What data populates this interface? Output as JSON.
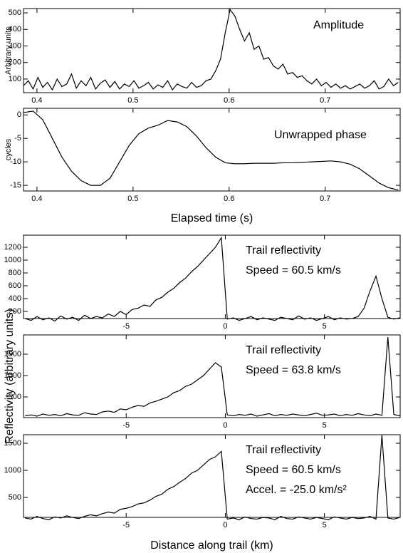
{
  "chart_data": [
    {
      "type": "line",
      "ylabel": "Arbitrary units",
      "annotations": [
        "Amplitude"
      ],
      "color": "#000000",
      "xlim": [
        0.386,
        0.778
      ],
      "xticks": [
        0.4,
        0.5,
        0.6,
        0.7
      ],
      "ylim": [
        18,
        526
      ],
      "yticks": [
        100,
        200,
        300,
        400,
        500
      ],
      "x": [
        0.386,
        0.391,
        0.396,
        0.401,
        0.406,
        0.411,
        0.416,
        0.421,
        0.426,
        0.431,
        0.436,
        0.441,
        0.446,
        0.451,
        0.456,
        0.461,
        0.466,
        0.471,
        0.476,
        0.481,
        0.486,
        0.491,
        0.496,
        0.501,
        0.506,
        0.511,
        0.516,
        0.521,
        0.526,
        0.531,
        0.536,
        0.541,
        0.546,
        0.551,
        0.556,
        0.561,
        0.566,
        0.571,
        0.576,
        0.581,
        0.586,
        0.591,
        0.596,
        0.601,
        0.606,
        0.611,
        0.616,
        0.621,
        0.626,
        0.631,
        0.636,
        0.641,
        0.646,
        0.651,
        0.656,
        0.661,
        0.666,
        0.671,
        0.676,
        0.681,
        0.686,
        0.691,
        0.696,
        0.701,
        0.706,
        0.711,
        0.716,
        0.721,
        0.726,
        0.731,
        0.736,
        0.741,
        0.746,
        0.751,
        0.756,
        0.761,
        0.766,
        0.771,
        0.776
      ],
      "values": [
        60,
        90,
        40,
        110,
        50,
        80,
        35,
        100,
        55,
        70,
        130,
        45,
        90,
        60,
        110,
        40,
        75,
        95,
        50,
        85,
        40,
        70,
        55,
        90,
        45,
        60,
        80,
        40,
        65,
        50,
        90,
        35,
        70,
        55,
        45,
        80,
        50,
        60,
        90,
        100,
        150,
        220,
        380,
        520,
        480,
        400,
        330,
        380,
        280,
        300,
        220,
        230,
        180,
        160,
        190,
        130,
        140,
        110,
        120,
        90,
        70,
        100,
        60,
        80,
        50,
        70,
        45,
        60,
        40,
        55,
        70,
        45,
        60,
        90,
        40,
        55,
        100,
        60,
        80
      ]
    },
    {
      "type": "line",
      "ylabel": "cycles",
      "xlabel": "Elapsed time (s)",
      "annotations": [
        "Unwrapped phase"
      ],
      "color": "#000000",
      "xlim": [
        0.386,
        0.778
      ],
      "xticks": [
        0.4,
        0.5,
        0.6,
        0.7
      ],
      "ylim": [
        -16.2,
        1.4
      ],
      "yticks": [
        0,
        -5,
        -10,
        -15
      ],
      "x": [
        0.386,
        0.396,
        0.406,
        0.416,
        0.426,
        0.436,
        0.446,
        0.456,
        0.466,
        0.476,
        0.486,
        0.496,
        0.506,
        0.516,
        0.526,
        0.536,
        0.546,
        0.556,
        0.566,
        0.576,
        0.586,
        0.596,
        0.606,
        0.616,
        0.626,
        0.636,
        0.646,
        0.656,
        0.666,
        0.676,
        0.686,
        0.696,
        0.706,
        0.716,
        0.726,
        0.736,
        0.746,
        0.756,
        0.766,
        0.776
      ],
      "values": [
        0.5,
        0.8,
        -1,
        -5,
        -9,
        -12,
        -14,
        -15,
        -15,
        -13.5,
        -10,
        -6.5,
        -4,
        -2.8,
        -2.2,
        -1.2,
        -1.5,
        -2.5,
        -4.5,
        -7,
        -9,
        -10.2,
        -10.4,
        -10.4,
        -10.3,
        -10.3,
        -10.3,
        -10.2,
        -10.2,
        -10.1,
        -10,
        -9.9,
        -9.8,
        -10,
        -10.5,
        -11.5,
        -13,
        -14.5,
        -15.5,
        -16
      ]
    },
    {
      "type": "line",
      "annotations": [
        "Trail reflectivity",
        "Speed = 60.5 km/s"
      ],
      "color": "#000000",
      "xlim": [
        -10.18,
        8.82
      ],
      "xticks": [
        -5,
        0,
        5
      ],
      "ylim": [
        89,
        1389
      ],
      "yticks": [
        200,
        400,
        600,
        800,
        1000,
        1200
      ],
      "x": [
        -10.1,
        -9.8,
        -9.5,
        -9.2,
        -8.9,
        -8.6,
        -8.3,
        -8.0,
        -7.7,
        -7.4,
        -7.1,
        -6.8,
        -6.5,
        -6.2,
        -5.9,
        -5.6,
        -5.3,
        -5.0,
        -4.7,
        -4.4,
        -4.1,
        -3.8,
        -3.5,
        -3.2,
        -2.9,
        -2.6,
        -2.3,
        -2.0,
        -1.7,
        -1.4,
        -1.1,
        -0.8,
        -0.5,
        -0.2,
        0.1,
        0.4,
        0.7,
        1.0,
        1.3,
        1.6,
        1.9,
        2.2,
        2.5,
        2.8,
        3.1,
        3.4,
        3.7,
        4.0,
        4.3,
        4.6,
        4.9,
        5.2,
        5.5,
        5.8,
        6.1,
        6.4,
        6.7,
        7.0,
        7.3,
        7.6,
        7.9,
        8.2,
        8.5,
        8.8
      ],
      "values": [
        90,
        60,
        120,
        70,
        100,
        50,
        130,
        80,
        110,
        60,
        140,
        90,
        120,
        100,
        160,
        120,
        200,
        150,
        230,
        250,
        300,
        280,
        380,
        420,
        500,
        560,
        650,
        720,
        820,
        900,
        1000,
        1100,
        1200,
        1350,
        80,
        100,
        60,
        90,
        120,
        70,
        100,
        80,
        60,
        110,
        90,
        70,
        130,
        80,
        100,
        60,
        90,
        120,
        70,
        100,
        80,
        90,
        120,
        250,
        520,
        750,
        400,
        110,
        80,
        100
      ]
    },
    {
      "type": "line",
      "ylabel": "Reflectivity (arbitrary units)",
      "annotations": [
        "Trail reflectivity",
        "Speed = 63.8 km/s"
      ],
      "color": "#000000",
      "xlim": [
        -10.18,
        8.82
      ],
      "xticks": [
        -5,
        0,
        5
      ],
      "ylim": [
        17,
        1950
      ],
      "yticks": [
        500,
        1000,
        1500
      ],
      "x": [
        -10.1,
        -9.8,
        -9.5,
        -9.2,
        -8.9,
        -8.6,
        -8.3,
        -8.0,
        -7.7,
        -7.4,
        -7.1,
        -6.8,
        -6.5,
        -6.2,
        -5.9,
        -5.6,
        -5.3,
        -5.0,
        -4.7,
        -4.4,
        -4.1,
        -3.8,
        -3.5,
        -3.2,
        -2.9,
        -2.6,
        -2.3,
        -2.0,
        -1.7,
        -1.4,
        -1.1,
        -0.8,
        -0.5,
        -0.2,
        0.1,
        0.4,
        0.7,
        1.0,
        1.3,
        1.6,
        1.9,
        2.2,
        2.5,
        2.8,
        3.1,
        3.4,
        3.7,
        4.0,
        4.3,
        4.6,
        4.9,
        5.2,
        5.5,
        5.8,
        6.1,
        6.4,
        6.7,
        7.0,
        7.3,
        7.6,
        7.9,
        8.2,
        8.5,
        8.8
      ],
      "values": [
        60,
        80,
        50,
        100,
        70,
        90,
        60,
        110,
        80,
        70,
        130,
        100,
        90,
        150,
        170,
        140,
        220,
        200,
        260,
        300,
        280,
        360,
        400,
        450,
        500,
        600,
        650,
        750,
        800,
        900,
        1000,
        1150,
        1300,
        1200,
        80,
        60,
        90,
        70,
        100,
        50,
        80,
        110,
        60,
        90,
        70,
        100,
        80,
        60,
        90,
        120,
        70,
        80,
        100,
        60,
        90,
        70,
        110,
        80,
        60,
        100,
        70,
        1900,
        90,
        60
      ]
    },
    {
      "type": "line",
      "xlabel": "Distance along trail (km)",
      "annotations": [
        "Trail reflectivity",
        "Speed = 60.5 km/s",
        "Accel. = -25.0 km/s²"
      ],
      "color": "#000000",
      "xlim": [
        -10.18,
        8.82
      ],
      "xticks": [
        -5,
        0,
        5
      ],
      "ylim": [
        132,
        1658
      ],
      "yticks": [
        500,
        1000,
        1500
      ],
      "x": [
        -10.1,
        -9.8,
        -9.5,
        -9.2,
        -8.9,
        -8.6,
        -8.3,
        -8.0,
        -7.7,
        -7.4,
        -7.1,
        -6.8,
        -6.5,
        -6.2,
        -5.9,
        -5.6,
        -5.3,
        -5.0,
        -4.7,
        -4.4,
        -4.1,
        -3.8,
        -3.5,
        -3.2,
        -2.9,
        -2.6,
        -2.3,
        -2.0,
        -1.7,
        -1.4,
        -1.1,
        -0.8,
        -0.5,
        -0.2,
        0.1,
        0.4,
        0.7,
        1.0,
        1.3,
        1.6,
        1.9,
        2.2,
        2.5,
        2.8,
        3.1,
        3.4,
        3.7,
        4.0,
        4.3,
        4.6,
        4.9,
        5.2,
        5.5,
        5.8,
        6.1,
        6.4,
        6.7,
        7.0,
        7.3,
        7.6,
        7.9,
        8.2,
        8.5,
        8.8
      ],
      "values": [
        120,
        100,
        150,
        110,
        90,
        140,
        120,
        160,
        130,
        110,
        150,
        180,
        160,
        200,
        230,
        210,
        280,
        300,
        330,
        380,
        400,
        450,
        520,
        560,
        650,
        700,
        780,
        850,
        950,
        1000,
        1100,
        1200,
        1250,
        1350,
        100,
        120,
        90,
        140,
        110,
        100,
        130,
        120,
        90,
        150,
        110,
        100,
        140,
        120,
        100,
        130,
        110,
        90,
        140,
        120,
        100,
        130,
        110,
        120,
        150,
        100,
        1650,
        120,
        100,
        130
      ]
    }
  ]
}
